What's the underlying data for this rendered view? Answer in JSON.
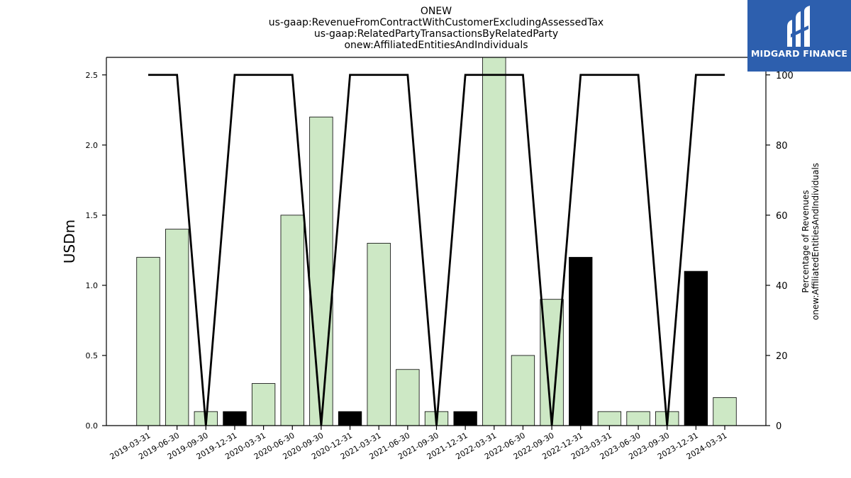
{
  "titles": [
    "ONEW",
    "us-gaap:RevenueFromContractWithCustomerExcludingAssessedTax",
    "us-gaap:RelatedPartyTransactionsByRelatedParty",
    "onew:AffiliatedEntitiesAndIndividuals"
  ],
  "logo": {
    "text": "MIDGARD FINANCE",
    "icon": "midgard-logo-icon",
    "color": "#2d5fae"
  },
  "chart_data": {
    "type": "bar",
    "categories": [
      "2019-03-31",
      "2019-06-30",
      "2019-09-30",
      "2019-12-31",
      "2020-03-31",
      "2020-06-30",
      "2020-09-30",
      "2020-12-31",
      "2021-03-31",
      "2021-06-30",
      "2021-09-30",
      "2021-12-31",
      "2022-03-31",
      "2022-06-30",
      "2022-09-30",
      "2022-12-31",
      "2023-03-31",
      "2023-06-30",
      "2023-09-30",
      "2023-12-31",
      "2024-03-31"
    ],
    "series": [
      {
        "values": [
          1.2,
          1.4,
          0.1,
          0.1,
          0.3,
          1.5,
          2.2,
          0.1,
          1.3,
          0.4,
          0.1,
          0.1,
          2.7,
          0.5,
          0.9,
          1.2,
          0.1,
          0.1,
          0.1,
          1.1,
          0.2
        ],
        "bar_colors": [
          "#cde8c5",
          "#cde8c5",
          "#cde8c5",
          "#000000",
          "#cde8c5",
          "#cde8c5",
          "#cde8c5",
          "#000000",
          "#cde8c5",
          "#cde8c5",
          "#cde8c5",
          "#000000",
          "#cde8c5",
          "#cde8c5",
          "#cde8c5",
          "#000000",
          "#cde8c5",
          "#cde8c5",
          "#cde8c5",
          "#000000",
          "#cde8c5"
        ]
      },
      {
        "axis": "right",
        "values": [
          100,
          100,
          0,
          100,
          100,
          100,
          0,
          100,
          100,
          100,
          0,
          100,
          100,
          100,
          0,
          100,
          100,
          100,
          0,
          100,
          100
        ],
        "color": "#000000"
      }
    ],
    "ylabel": "USDm",
    "ylim": [
      0,
      2.625
    ],
    "yticks": [
      "0.0",
      "0.5",
      "1.0",
      "1.5",
      "2.0",
      "2.5"
    ],
    "y2label": [
      "Percentage of Revenues",
      "onew:AffiliatedEntitiesAndIndividuals"
    ],
    "y2lim": [
      0,
      105
    ],
    "y2ticks": [
      "0",
      "20",
      "40",
      "60",
      "80",
      "100"
    ],
    "grid": false,
    "legend": "none",
    "colors": {
      "light_bar": "#cde8c5",
      "dark_bar": "#000000",
      "line": "#000000"
    }
  }
}
